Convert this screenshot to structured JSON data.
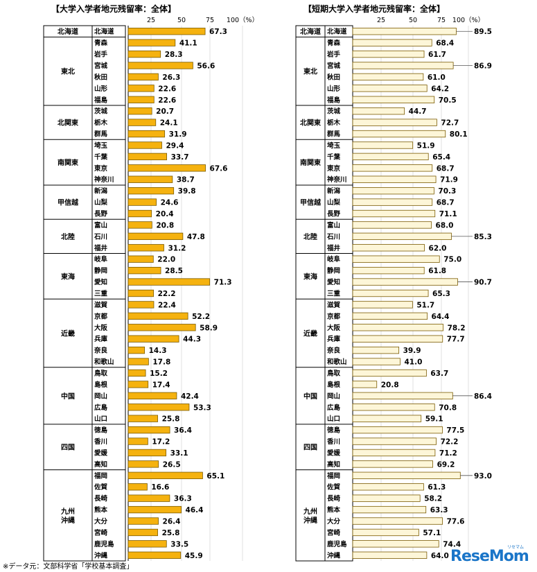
{
  "chart_data": [
    {
      "type": "bar",
      "title": "【大学入学者地元残留率：全体】",
      "ticks": [
        "25",
        "50",
        "75",
        "100（%）"
      ],
      "xlim": [
        0,
        100
      ],
      "bar_color": "#f5b20f",
      "groups": [
        {
          "region": "北海道",
          "items": [
            {
              "name": "北海道",
              "value": 67.3
            }
          ]
        },
        {
          "region": "東北",
          "items": [
            {
              "name": "青森",
              "value": 41.1
            },
            {
              "name": "岩手",
              "value": 28.3
            },
            {
              "name": "宮城",
              "value": 56.6
            },
            {
              "name": "秋田",
              "value": 26.3
            },
            {
              "name": "山形",
              "value": 22.6
            },
            {
              "name": "福島",
              "value": 22.6
            }
          ]
        },
        {
          "region": "北関東",
          "items": [
            {
              "name": "茨城",
              "value": 20.7
            },
            {
              "name": "栃木",
              "value": 24.1
            },
            {
              "name": "群馬",
              "value": 31.9
            }
          ]
        },
        {
          "region": "南関東",
          "items": [
            {
              "name": "埼玉",
              "value": 29.4
            },
            {
              "name": "千葉",
              "value": 33.7
            },
            {
              "name": "東京",
              "value": 67.6
            },
            {
              "name": "神奈川",
              "value": 38.7
            }
          ]
        },
        {
          "region": "甲信越",
          "items": [
            {
              "name": "新潟",
              "value": 39.8
            },
            {
              "name": "山梨",
              "value": 24.6
            },
            {
              "name": "長野",
              "value": 20.4
            }
          ]
        },
        {
          "region": "北陸",
          "items": [
            {
              "name": "富山",
              "value": 20.8
            },
            {
              "name": "石川",
              "value": 47.8
            },
            {
              "name": "福井",
              "value": 31.2
            }
          ]
        },
        {
          "region": "東海",
          "items": [
            {
              "name": "岐阜",
              "value": 22.0
            },
            {
              "name": "静岡",
              "value": 28.5
            },
            {
              "name": "愛知",
              "value": 71.3
            },
            {
              "name": "三重",
              "value": 22.2
            }
          ]
        },
        {
          "region": "近畿",
          "items": [
            {
              "name": "滋賀",
              "value": 22.4
            },
            {
              "name": "京都",
              "value": 52.2
            },
            {
              "name": "大阪",
              "value": 58.9
            },
            {
              "name": "兵庫",
              "value": 44.3
            },
            {
              "name": "奈良",
              "value": 14.3
            },
            {
              "name": "和歌山",
              "value": 17.8
            }
          ]
        },
        {
          "region": "中国",
          "items": [
            {
              "name": "鳥取",
              "value": 15.2
            },
            {
              "name": "島根",
              "value": 17.4
            },
            {
              "name": "岡山",
              "value": 42.4
            },
            {
              "name": "広島",
              "value": 53.3
            },
            {
              "name": "山口",
              "value": 25.8
            }
          ]
        },
        {
          "region": "四国",
          "items": [
            {
              "name": "徳島",
              "value": 36.4
            },
            {
              "name": "香川",
              "value": 17.2
            },
            {
              "name": "愛媛",
              "value": 33.1
            },
            {
              "name": "高知",
              "value": 26.5
            }
          ]
        },
        {
          "region": "九州\n沖縄",
          "items": [
            {
              "name": "福岡",
              "value": 65.1
            },
            {
              "name": "佐賀",
              "value": 16.6
            },
            {
              "name": "長崎",
              "value": 36.3
            },
            {
              "name": "熊本",
              "value": 46.4
            },
            {
              "name": "大分",
              "value": 26.4
            },
            {
              "name": "宮崎",
              "value": 25.8
            },
            {
              "name": "鹿児島",
              "value": 33.5
            },
            {
              "name": "沖縄",
              "value": 45.9
            }
          ]
        }
      ]
    },
    {
      "type": "bar",
      "title": "【短期大学入学者地元残留率：全体】",
      "ticks": [
        "25",
        "50",
        "75",
        "100（%）"
      ],
      "xlim": [
        0,
        100
      ],
      "bar_color": "#fdf6d8",
      "groups": [
        {
          "region": "北海道",
          "items": [
            {
              "name": "北海道",
              "value": 89.5
            }
          ]
        },
        {
          "region": "東北",
          "items": [
            {
              "name": "青森",
              "value": 68.4
            },
            {
              "name": "岩手",
              "value": 61.7
            },
            {
              "name": "宮城",
              "value": 86.9
            },
            {
              "name": "秋田",
              "value": 61.0
            },
            {
              "name": "山形",
              "value": 64.2
            },
            {
              "name": "福島",
              "value": 70.5
            }
          ]
        },
        {
          "region": "北関東",
          "items": [
            {
              "name": "茨城",
              "value": 44.7
            },
            {
              "name": "栃木",
              "value": 72.7
            },
            {
              "name": "群馬",
              "value": 80.1
            }
          ]
        },
        {
          "region": "南関東",
          "items": [
            {
              "name": "埼玉",
              "value": 51.9
            },
            {
              "name": "千葉",
              "value": 65.4
            },
            {
              "name": "東京",
              "value": 68.7
            },
            {
              "name": "神奈川",
              "value": 71.9
            }
          ]
        },
        {
          "region": "甲信越",
          "items": [
            {
              "name": "新潟",
              "value": 70.3
            },
            {
              "name": "山梨",
              "value": 68.7
            },
            {
              "name": "長野",
              "value": 71.1
            }
          ]
        },
        {
          "region": "北陸",
          "items": [
            {
              "name": "富山",
              "value": 68.0
            },
            {
              "name": "石川",
              "value": 85.3
            },
            {
              "name": "福井",
              "value": 62.0
            }
          ]
        },
        {
          "region": "東海",
          "items": [
            {
              "name": "岐阜",
              "value": 75.0
            },
            {
              "name": "静岡",
              "value": 61.8
            },
            {
              "name": "愛知",
              "value": 90.7
            },
            {
              "name": "三重",
              "value": 65.3
            }
          ]
        },
        {
          "region": "近畿",
          "items": [
            {
              "name": "滋賀",
              "value": 51.7
            },
            {
              "name": "京都",
              "value": 64.4
            },
            {
              "name": "大阪",
              "value": 78.2
            },
            {
              "name": "兵庫",
              "value": 77.7
            },
            {
              "name": "奈良",
              "value": 39.9
            },
            {
              "name": "和歌山",
              "value": 41.0
            }
          ]
        },
        {
          "region": "中国",
          "items": [
            {
              "name": "鳥取",
              "value": 63.7
            },
            {
              "name": "島根",
              "value": 20.8
            },
            {
              "name": "岡山",
              "value": 86.4
            },
            {
              "name": "広島",
              "value": 70.8
            },
            {
              "name": "山口",
              "value": 59.1
            }
          ]
        },
        {
          "region": "四国",
          "items": [
            {
              "name": "徳島",
              "value": 77.5
            },
            {
              "name": "香川",
              "value": 72.2
            },
            {
              "name": "愛媛",
              "value": 71.2
            },
            {
              "name": "高知",
              "value": 69.2
            }
          ]
        },
        {
          "region": "九州\n沖縄",
          "items": [
            {
              "name": "福岡",
              "value": 93.0
            },
            {
              "name": "佐賀",
              "value": 61.3
            },
            {
              "name": "長崎",
              "value": 58.2
            },
            {
              "name": "熊本",
              "value": 63.3
            },
            {
              "name": "大分",
              "value": 77.6
            },
            {
              "name": "宮崎",
              "value": 57.1
            },
            {
              "name": "鹿児島",
              "value": 74.4
            },
            {
              "name": "沖縄",
              "value": 64.0
            }
          ]
        }
      ]
    }
  ],
  "footer": {
    "source": "※データ元：文部科学省「学校基本調査」",
    "logo": "ReseMom",
    "logo_sub": "リセマム"
  }
}
